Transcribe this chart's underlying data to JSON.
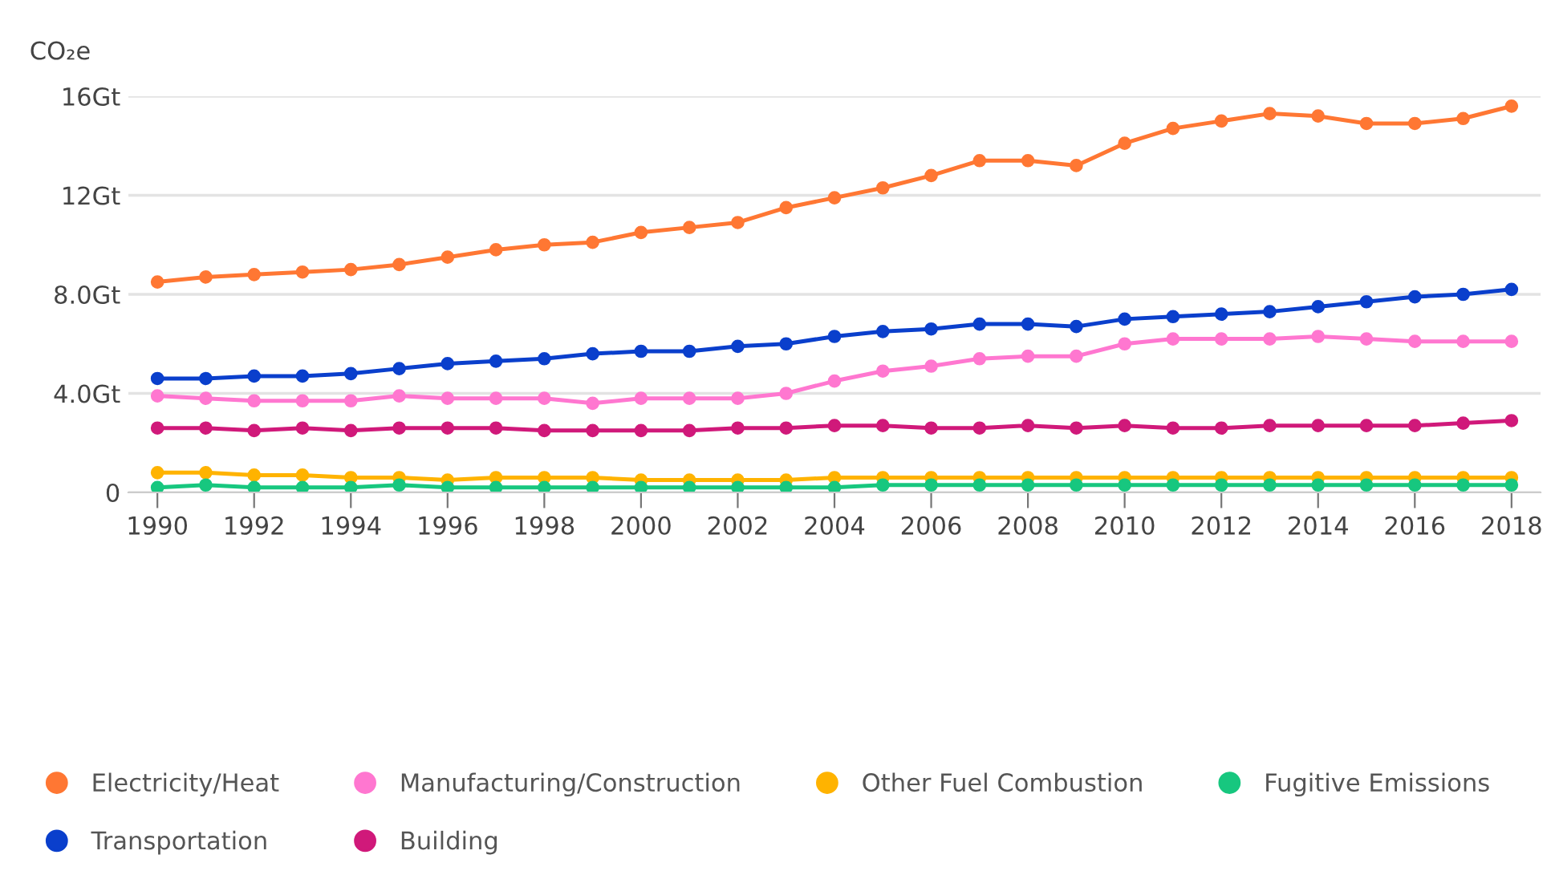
{
  "chart_data": {
    "type": "line",
    "ylabel": "CO₂e",
    "x": [
      1990,
      1991,
      1992,
      1993,
      1994,
      1995,
      1996,
      1997,
      1998,
      1999,
      2000,
      2001,
      2002,
      2003,
      2004,
      2005,
      2006,
      2007,
      2008,
      2009,
      2010,
      2011,
      2012,
      2013,
      2014,
      2015,
      2016,
      2017,
      2018
    ],
    "xlim": [
      1989.4,
      2018.6
    ],
    "xticks": [
      1990,
      1992,
      1994,
      1996,
      1998,
      2000,
      2002,
      2004,
      2006,
      2008,
      2010,
      2012,
      2014,
      2016,
      2018
    ],
    "ylim": [
      0,
      16
    ],
    "yticks": [
      0,
      {
        "value": 4,
        "label": "4.0Gt"
      },
      {
        "value": 8,
        "label": "8.0Gt"
      },
      {
        "value": 12,
        "label": "12Gt"
      },
      {
        "value": 16,
        "label": "16Gt"
      }
    ],
    "grid": "y",
    "legend": "bottom",
    "marker": "circle",
    "line_style": "solid",
    "series": [
      {
        "name": "Electricity/Heat",
        "color": "#ff7733",
        "values": [
          8.5,
          8.7,
          8.8,
          8.9,
          9.0,
          9.2,
          9.5,
          9.8,
          10.0,
          10.1,
          10.5,
          10.7,
          10.9,
          11.5,
          11.9,
          12.3,
          12.8,
          13.4,
          13.4,
          13.2,
          14.1,
          14.7,
          15.0,
          15.3,
          15.2,
          14.9,
          14.9,
          15.1,
          15.6
        ]
      },
      {
        "name": "Transportation",
        "color": "#0a3fcc",
        "values": [
          4.6,
          4.6,
          4.7,
          4.7,
          4.8,
          5.0,
          5.2,
          5.3,
          5.4,
          5.6,
          5.7,
          5.7,
          5.9,
          6.0,
          6.3,
          6.5,
          6.6,
          6.8,
          6.8,
          6.7,
          7.0,
          7.1,
          7.2,
          7.3,
          7.5,
          7.7,
          7.9,
          8.0,
          8.2
        ]
      },
      {
        "name": "Manufacturing/Construction",
        "color": "#ff77d0",
        "values": [
          3.9,
          3.8,
          3.7,
          3.7,
          3.7,
          3.9,
          3.8,
          3.8,
          3.8,
          3.6,
          3.8,
          3.8,
          3.8,
          4.0,
          4.5,
          4.9,
          5.1,
          5.4,
          5.5,
          5.5,
          6.0,
          6.2,
          6.2,
          6.2,
          6.3,
          6.2,
          6.1,
          6.1,
          6.1
        ]
      },
      {
        "name": "Building",
        "color": "#d0197a",
        "values": [
          2.6,
          2.6,
          2.5,
          2.6,
          2.5,
          2.6,
          2.6,
          2.6,
          2.5,
          2.5,
          2.5,
          2.5,
          2.6,
          2.6,
          2.7,
          2.7,
          2.6,
          2.6,
          2.7,
          2.6,
          2.7,
          2.6,
          2.6,
          2.7,
          2.7,
          2.7,
          2.7,
          2.8,
          2.9
        ]
      },
      {
        "name": "Other Fuel Combustion",
        "color": "#ffb300",
        "values": [
          0.8,
          0.8,
          0.7,
          0.7,
          0.6,
          0.6,
          0.5,
          0.6,
          0.6,
          0.6,
          0.5,
          0.5,
          0.5,
          0.5,
          0.6,
          0.6,
          0.6,
          0.6,
          0.6,
          0.6,
          0.6,
          0.6,
          0.6,
          0.6,
          0.6,
          0.6,
          0.6,
          0.6,
          0.6
        ]
      },
      {
        "name": "Fugitive Emissions",
        "color": "#17c77f",
        "values": [
          0.2,
          0.3,
          0.2,
          0.2,
          0.2,
          0.3,
          0.2,
          0.2,
          0.2,
          0.2,
          0.2,
          0.2,
          0.2,
          0.2,
          0.2,
          0.3,
          0.3,
          0.3,
          0.3,
          0.3,
          0.3,
          0.3,
          0.3,
          0.3,
          0.3,
          0.3,
          0.3,
          0.3,
          0.3
        ]
      }
    ]
  }
}
